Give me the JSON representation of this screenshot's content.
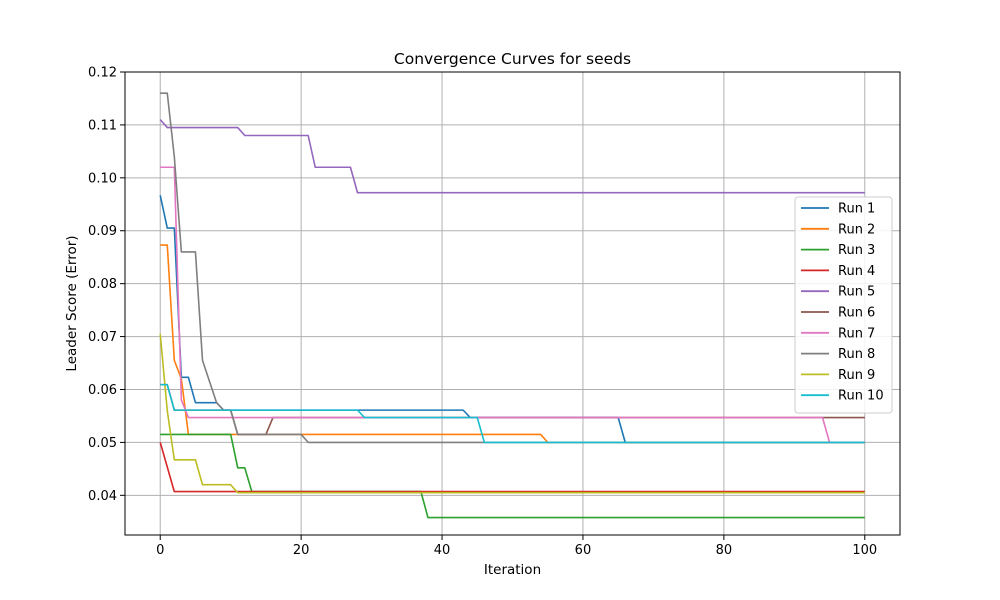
{
  "chart_data": {
    "type": "line",
    "title": "Convergence Curves for seeds",
    "xlabel": "Iteration",
    "ylabel": "Leader Score (Error)",
    "xlim": [
      -5,
      105
    ],
    "ylim": [
      0.0325,
      0.12
    ],
    "xticks": [
      0,
      20,
      40,
      60,
      80,
      100
    ],
    "yticks": [
      0.04,
      0.05,
      0.06,
      0.07,
      0.08,
      0.09,
      0.1,
      0.11,
      0.12
    ],
    "ytick_labels": [
      "0.04",
      "0.05",
      "0.06",
      "0.07",
      "0.08",
      "0.09",
      "0.10",
      "0.11",
      "0.12"
    ],
    "grid": true,
    "legend_position": "center-right",
    "series": [
      {
        "name": "Run 1",
        "color": "#1f77b4",
        "points": [
          [
            0,
            0.0967
          ],
          [
            1,
            0.0905
          ],
          [
            2,
            0.0905
          ],
          [
            3,
            0.0623
          ],
          [
            4,
            0.0623
          ],
          [
            5,
            0.0575
          ],
          [
            8,
            0.0575
          ],
          [
            9,
            0.0561
          ],
          [
            43,
            0.0561
          ],
          [
            44,
            0.0547
          ],
          [
            65,
            0.0547
          ],
          [
            66,
            0.05
          ],
          [
            100,
            0.05
          ]
        ]
      },
      {
        "name": "Run 2",
        "color": "#ff7f0e",
        "points": [
          [
            0,
            0.0873
          ],
          [
            1,
            0.0873
          ],
          [
            2,
            0.0655
          ],
          [
            3,
            0.062
          ],
          [
            4,
            0.0515
          ],
          [
            54,
            0.0515
          ],
          [
            55,
            0.05
          ],
          [
            100,
            0.05
          ]
        ]
      },
      {
        "name": "Run 3",
        "color": "#2ca02c",
        "points": [
          [
            0,
            0.0515
          ],
          [
            10,
            0.0515
          ],
          [
            11,
            0.0452
          ],
          [
            12,
            0.0452
          ],
          [
            13,
            0.0407
          ],
          [
            37,
            0.0407
          ],
          [
            38,
            0.0358
          ],
          [
            100,
            0.0358
          ]
        ]
      },
      {
        "name": "Run 4",
        "color": "#d62728",
        "points": [
          [
            0,
            0.05
          ],
          [
            2,
            0.0407
          ],
          [
            100,
            0.0407
          ]
        ]
      },
      {
        "name": "Run 5",
        "color": "#9467bd",
        "points": [
          [
            0,
            0.111
          ],
          [
            1,
            0.1095
          ],
          [
            11,
            0.1095
          ],
          [
            12,
            0.108
          ],
          [
            21,
            0.108
          ],
          [
            22,
            0.102
          ],
          [
            27,
            0.102
          ],
          [
            28,
            0.0972
          ],
          [
            100,
            0.0972
          ]
        ]
      },
      {
        "name": "Run 6",
        "color": "#8c564b",
        "points": [
          [
            0,
            0.0609
          ],
          [
            1,
            0.0609
          ],
          [
            2,
            0.0561
          ],
          [
            10,
            0.0561
          ],
          [
            11,
            0.0515
          ],
          [
            15,
            0.0515
          ],
          [
            16,
            0.0547
          ],
          [
            100,
            0.0547
          ]
        ]
      },
      {
        "name": "Run 7",
        "color": "#e377c2",
        "points": [
          [
            0,
            0.102
          ],
          [
            2,
            0.102
          ],
          [
            3,
            0.058
          ],
          [
            4,
            0.0547
          ],
          [
            94,
            0.0547
          ],
          [
            95,
            0.05
          ],
          [
            100,
            0.05
          ]
        ]
      },
      {
        "name": "Run 8",
        "color": "#7f7f7f",
        "points": [
          [
            0,
            0.116
          ],
          [
            1,
            0.116
          ],
          [
            2,
            0.104
          ],
          [
            3,
            0.086
          ],
          [
            5,
            0.086
          ],
          [
            6,
            0.0655
          ],
          [
            8,
            0.0575
          ],
          [
            9,
            0.0561
          ],
          [
            10,
            0.0561
          ],
          [
            11,
            0.0515
          ],
          [
            20,
            0.0515
          ],
          [
            21,
            0.05
          ],
          [
            100,
            0.05
          ]
        ]
      },
      {
        "name": "Run 9",
        "color": "#bcbd22",
        "points": [
          [
            0,
            0.0705
          ],
          [
            1,
            0.056
          ],
          [
            2,
            0.0467
          ],
          [
            5,
            0.0467
          ],
          [
            6,
            0.042
          ],
          [
            10,
            0.042
          ],
          [
            11,
            0.0405
          ],
          [
            100,
            0.0405
          ]
        ]
      },
      {
        "name": "Run 10",
        "color": "#17becf",
        "points": [
          [
            0,
            0.0609
          ],
          [
            1,
            0.0609
          ],
          [
            2,
            0.0561
          ],
          [
            28,
            0.0561
          ],
          [
            29,
            0.0547
          ],
          [
            45,
            0.0547
          ],
          [
            46,
            0.05
          ],
          [
            100,
            0.05
          ]
        ]
      }
    ]
  }
}
